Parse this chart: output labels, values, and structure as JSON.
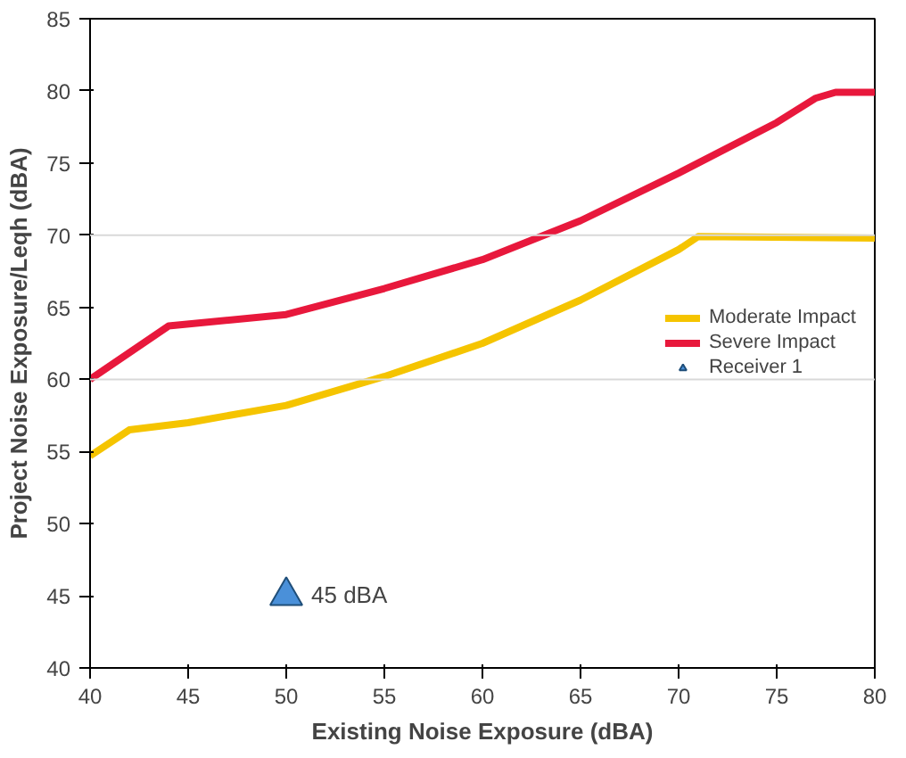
{
  "chart_data": {
    "type": "line",
    "xlabel": "Existing Noise Exposure (dBA)",
    "ylabel": "Project Noise Exposure/Leqh (dBA)",
    "xlim": [
      40,
      80
    ],
    "ylim": [
      40,
      85
    ],
    "xticks": [
      40,
      45,
      50,
      55,
      60,
      65,
      70,
      75,
      80
    ],
    "yticks": [
      40,
      45,
      50,
      55,
      60,
      65,
      70,
      75,
      80,
      85
    ],
    "grid": false,
    "legend": "right",
    "ref_lines": [
      {
        "axis": "y",
        "value": 70,
        "color": "#d9d9d9"
      },
      {
        "axis": "y",
        "value": 60,
        "color": "#d9d9d9"
      }
    ],
    "series": [
      {
        "name": "Moderate Impact",
        "color": "#f5c400",
        "x": [
          40,
          42,
          45,
          50,
          55,
          60,
          65,
          70,
          71,
          80
        ],
        "values": [
          54.7,
          56.5,
          57,
          58.2,
          60.2,
          62.5,
          65.5,
          69,
          69.9,
          69.8
        ]
      },
      {
        "name": "Severe Impact",
        "color": "#e8183c",
        "x": [
          40,
          44,
          50,
          55,
          60,
          65,
          70,
          75,
          77,
          78,
          80
        ],
        "values": [
          60,
          63.7,
          64.5,
          66.3,
          68.3,
          71,
          74.3,
          77.8,
          79.5,
          79.9,
          79.9
        ]
      },
      {
        "name": "Receiver 1",
        "type": "scatter",
        "marker": "triangle",
        "color": "#4a90d9",
        "x": [
          50
        ],
        "values": [
          45
        ]
      }
    ],
    "annotations": [
      {
        "text": "45 dBA",
        "x": 50,
        "y": 45
      }
    ]
  }
}
